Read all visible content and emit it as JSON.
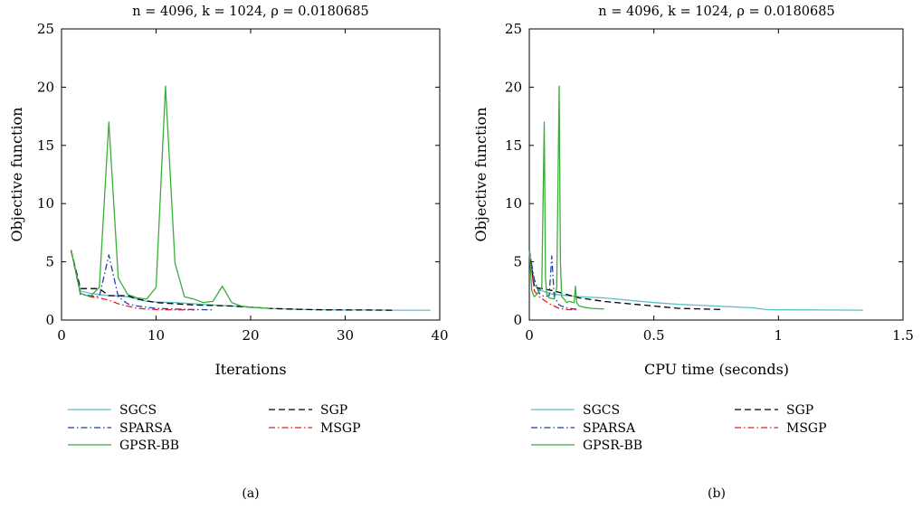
{
  "chart_data": [
    {
      "type": "line",
      "title": "n = 4096, k = 1024, ρ = 0.0180685",
      "xlabel": "Iterations",
      "ylabel": "Objective function",
      "caption": "(a)",
      "xlim": [
        0,
        40
      ],
      "ylim": [
        0,
        25
      ],
      "xticks": [
        0,
        10,
        20,
        30,
        40
      ],
      "yticks": [
        0,
        5,
        10,
        15,
        20,
        25
      ],
      "grid": false,
      "legend_position": "below",
      "series": [
        {
          "name": "SGCS",
          "color": "#5bc0c8",
          "dash": "solid",
          "x": [
            1,
            2,
            3,
            4,
            5,
            6,
            7,
            8,
            9,
            10,
            12,
            14,
            16,
            18,
            20,
            22,
            24,
            26,
            28,
            30,
            32,
            35,
            39
          ],
          "y": [
            6.0,
            2.5,
            2.3,
            2.2,
            2.1,
            2.05,
            2.0,
            1.8,
            1.6,
            1.55,
            1.5,
            1.4,
            1.3,
            1.2,
            1.1,
            1.0,
            0.95,
            0.9,
            0.88,
            0.87,
            0.86,
            0.85,
            0.85
          ]
        },
        {
          "name": "SPARSA",
          "color": "#1f3fb0",
          "dash": "dashdot",
          "x": [
            1,
            2,
            3,
            4,
            5,
            6,
            7,
            8,
            9,
            10,
            12,
            14,
            16
          ],
          "y": [
            6.0,
            2.2,
            2.1,
            2.0,
            5.6,
            2.0,
            1.4,
            1.2,
            1.1,
            1.0,
            0.95,
            0.9,
            0.88
          ]
        },
        {
          "name": "GPSR-BB",
          "color": "#3aae3a",
          "dash": "solid",
          "x": [
            1,
            2,
            3,
            4,
            5,
            6,
            7,
            8,
            9,
            10,
            11,
            12,
            13,
            14,
            15,
            16,
            17,
            18,
            19,
            20,
            22
          ],
          "y": [
            6.0,
            2.3,
            2.0,
            2.8,
            17.0,
            3.6,
            2.2,
            1.9,
            1.8,
            2.8,
            20.1,
            4.9,
            2.0,
            1.8,
            1.5,
            1.6,
            2.9,
            1.5,
            1.2,
            1.1,
            1.0
          ]
        },
        {
          "name": "SGP",
          "color": "#000000",
          "dash": "dashed",
          "x": [
            1,
            2,
            3,
            4,
            5,
            6,
            7,
            8,
            10,
            12,
            14,
            16,
            18,
            20,
            22,
            24,
            26,
            28,
            30,
            32,
            35
          ],
          "y": [
            6.0,
            2.7,
            2.7,
            2.7,
            2.1,
            2.1,
            2.1,
            1.8,
            1.5,
            1.4,
            1.3,
            1.25,
            1.2,
            1.1,
            1.0,
            0.95,
            0.9,
            0.88,
            0.87,
            0.86,
            0.85
          ]
        },
        {
          "name": "MSGP",
          "color": "#e02020",
          "dash": "dashdot",
          "x": [
            1,
            2,
            3,
            4,
            5,
            6,
            7,
            8,
            10,
            12,
            14
          ],
          "y": [
            6.0,
            2.3,
            2.0,
            1.9,
            1.7,
            1.4,
            1.2,
            1.0,
            0.9,
            0.88,
            0.87
          ]
        }
      ]
    },
    {
      "type": "line",
      "title": "n = 4096, k = 1024, ρ = 0.0180685",
      "xlabel": "CPU time (seconds)",
      "ylabel": "Objective function",
      "caption": "(b)",
      "xlim": [
        0,
        1.5
      ],
      "ylim": [
        0,
        25
      ],
      "xticks": [
        0,
        0.5,
        1,
        1.5
      ],
      "yticks": [
        0,
        5,
        10,
        15,
        20,
        25
      ],
      "grid": false,
      "legend_position": "below",
      "series": [
        {
          "name": "SGCS",
          "color": "#5bc0c8",
          "dash": "solid",
          "x": [
            0,
            0.02,
            0.05,
            0.1,
            0.2,
            0.3,
            0.4,
            0.5,
            0.6,
            0.7,
            0.8,
            0.9,
            0.95,
            1.0,
            1.1,
            1.2,
            1.34
          ],
          "y": [
            6.0,
            3.0,
            2.5,
            2.2,
            2.0,
            1.9,
            1.7,
            1.5,
            1.35,
            1.25,
            1.15,
            1.05,
            0.9,
            0.88,
            0.87,
            0.86,
            0.85
          ]
        },
        {
          "name": "SPARSA",
          "color": "#1f3fb0",
          "dash": "dashdot",
          "x": [
            0,
            0.02,
            0.04,
            0.06,
            0.08,
            0.09,
            0.1,
            0.12,
            0.14,
            0.16,
            0.18,
            0.2
          ],
          "y": [
            6.0,
            3.5,
            2.3,
            2.0,
            2.1,
            5.5,
            2.0,
            1.3,
            1.1,
            1.0,
            0.95,
            0.9
          ]
        },
        {
          "name": "GPSR-BB",
          "color": "#3aae3a",
          "dash": "solid",
          "x": [
            0,
            0.01,
            0.02,
            0.03,
            0.05,
            0.06,
            0.065,
            0.07,
            0.08,
            0.1,
            0.11,
            0.12,
            0.125,
            0.13,
            0.14,
            0.15,
            0.16,
            0.18,
            0.185,
            0.19,
            0.2,
            0.22,
            0.25,
            0.3
          ],
          "y": [
            6.0,
            2.5,
            2.0,
            2.2,
            2.8,
            17.0,
            3.6,
            2.2,
            1.9,
            1.8,
            2.8,
            20.1,
            4.9,
            2.0,
            1.8,
            1.5,
            1.6,
            1.5,
            2.9,
            1.5,
            1.2,
            1.1,
            1.0,
            0.95
          ]
        },
        {
          "name": "SGP",
          "color": "#000000",
          "dash": "dashed",
          "x": [
            0,
            0.02,
            0.05,
            0.1,
            0.15,
            0.2,
            0.3,
            0.4,
            0.5,
            0.6,
            0.7,
            0.78
          ],
          "y": [
            6.0,
            2.8,
            2.7,
            2.5,
            2.2,
            1.9,
            1.6,
            1.4,
            1.2,
            1.0,
            0.95,
            0.9
          ]
        },
        {
          "name": "MSGP",
          "color": "#e02020",
          "dash": "dashdot",
          "x": [
            0,
            0.02,
            0.04,
            0.06,
            0.08,
            0.1,
            0.12,
            0.15,
            0.2
          ],
          "y": [
            6.0,
            2.5,
            2.0,
            1.7,
            1.4,
            1.2,
            1.0,
            0.9,
            0.88
          ]
        }
      ]
    }
  ]
}
